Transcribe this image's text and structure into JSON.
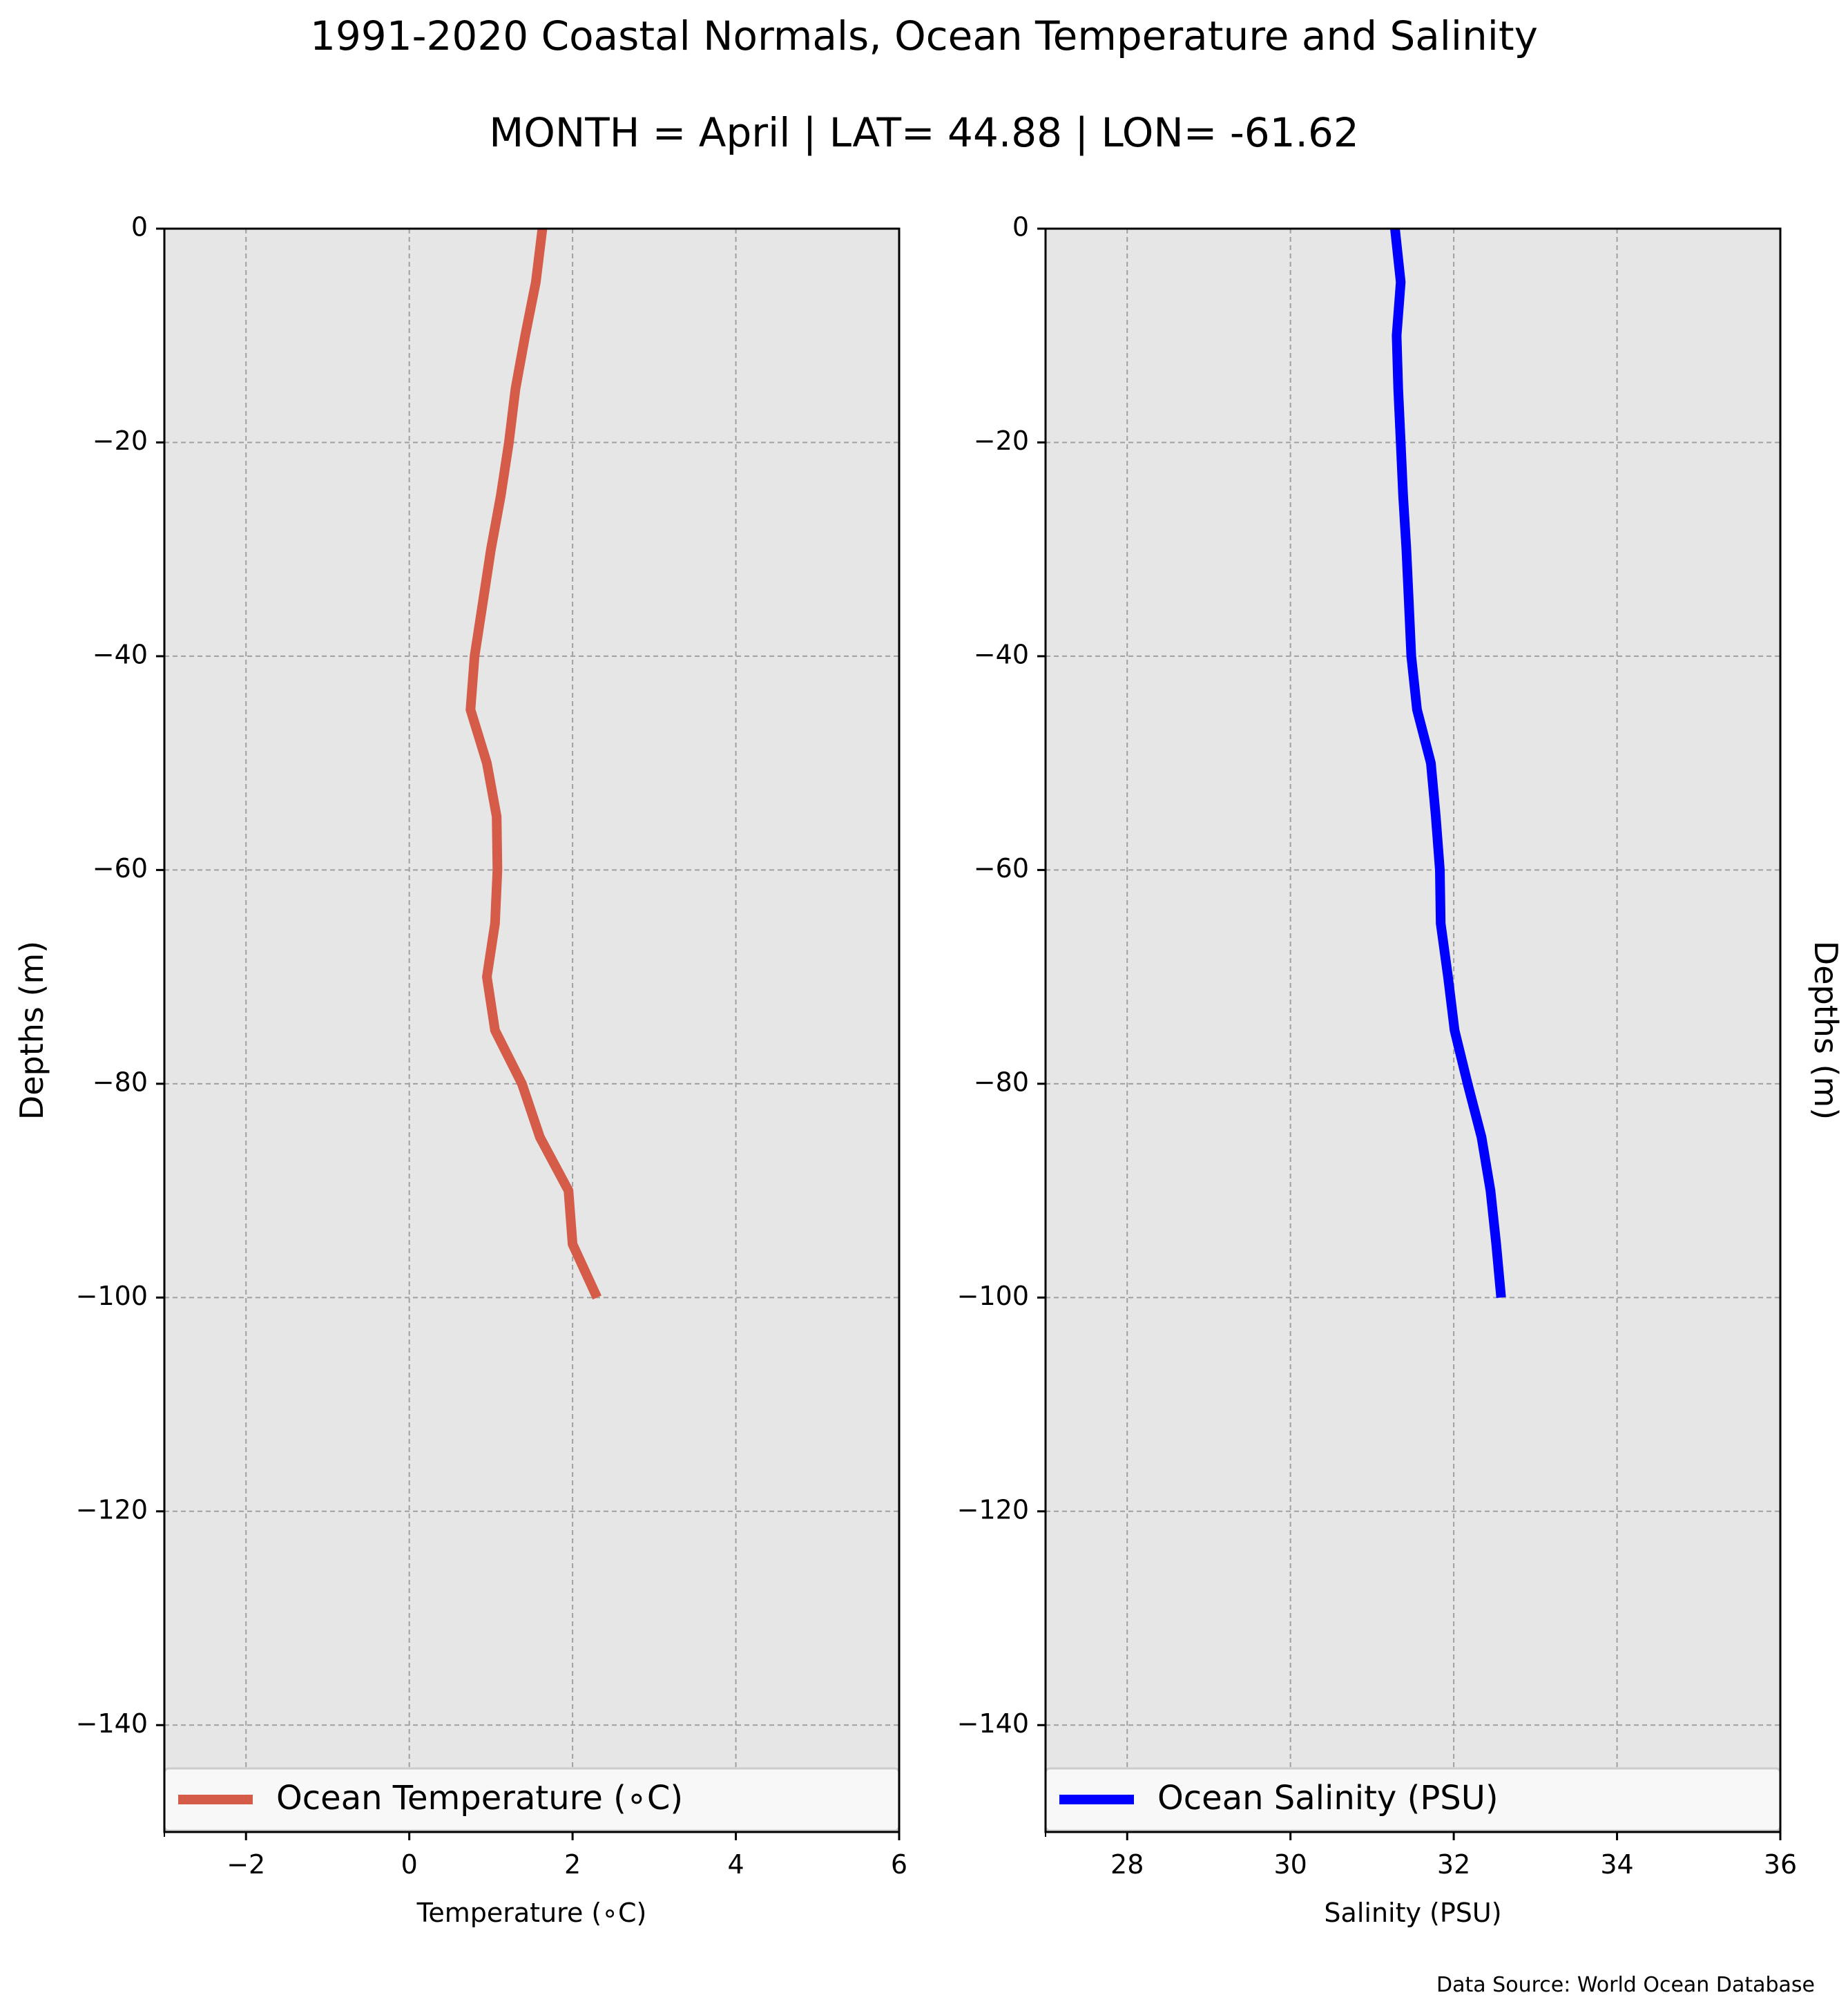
{
  "figure": {
    "title": "1991-2020 Coastal Normals, Ocean Temperature and Salinity",
    "subtitle": "MONTH = April | LAT= 44.88 | LON= -61.62",
    "source": "Data Source: World Ocean Database",
    "colors": {
      "panel_background": "#e6e6e6",
      "grid": "#a0a0a0",
      "axes": "#000000"
    }
  },
  "chart_data": [
    {
      "type": "line",
      "xlabel": "Temperature ($^\\circ$C)",
      "xlabel_display": "Temperature (∘C)",
      "ylabel": "Depths (m)",
      "xlim": [
        -3,
        6
      ],
      "ylim": [
        -150,
        0
      ],
      "xticks": [
        -2,
        0,
        2,
        4,
        6
      ],
      "xtick_labels": [
        "−2",
        "0",
        "2",
        "4",
        "6"
      ],
      "yticks": [
        0,
        -20,
        -40,
        -60,
        -80,
        -100,
        -120,
        -140
      ],
      "ytick_labels": [
        "0",
        "−20",
        "−40",
        "−60",
        "−80",
        "−100",
        "−120",
        "−140"
      ],
      "grid": true,
      "legend_position": "bottom",
      "ylabel_side": "left",
      "series": [
        {
          "name": "Ocean Temperature (∘C)",
          "color": "#d45c48",
          "x": [
            1.63,
            1.55,
            1.42,
            1.3,
            1.22,
            1.12,
            1.0,
            0.9,
            0.8,
            0.75,
            0.95,
            1.07,
            1.08,
            1.05,
            0.95,
            1.05,
            1.38,
            1.6,
            1.95,
            2.0,
            2.3
          ],
          "y": [
            0,
            -5,
            -10,
            -15,
            -20,
            -25,
            -30,
            -35,
            -40,
            -45,
            -50,
            -55,
            -60,
            -65,
            -70,
            -75,
            -80,
            -85,
            -90,
            -95,
            -100
          ]
        }
      ]
    },
    {
      "type": "line",
      "xlabel": "Salinity (PSU)",
      "xlabel_display": "Salinity (PSU)",
      "ylabel": "Depths (m)",
      "xlim": [
        27,
        36
      ],
      "ylim": [
        -150,
        0
      ],
      "xticks": [
        28,
        30,
        32,
        34,
        36
      ],
      "xtick_labels": [
        "28",
        "30",
        "32",
        "34",
        "36"
      ],
      "yticks": [
        0,
        -20,
        -40,
        -60,
        -80,
        -100,
        -120,
        -140
      ],
      "ytick_labels": [
        "0",
        "−20",
        "−40",
        "−60",
        "−80",
        "−100",
        "−120",
        "−140"
      ],
      "grid": true,
      "legend_position": "bottom",
      "ylabel_side": "right",
      "series": [
        {
          "name": "Ocean Salinity (PSU)",
          "color": "#0000ff",
          "x": [
            31.28,
            31.35,
            31.3,
            31.32,
            31.35,
            31.38,
            31.42,
            31.45,
            31.48,
            31.55,
            31.72,
            31.78,
            31.83,
            31.84,
            31.93,
            32.01,
            32.17,
            32.34,
            32.45,
            32.52,
            32.58
          ],
          "y": [
            0,
            -5,
            -10,
            -15,
            -20,
            -25,
            -30,
            -35,
            -40,
            -45,
            -50,
            -55,
            -60,
            -65,
            -70,
            -75,
            -80,
            -85,
            -90,
            -95,
            -100
          ]
        }
      ]
    }
  ]
}
